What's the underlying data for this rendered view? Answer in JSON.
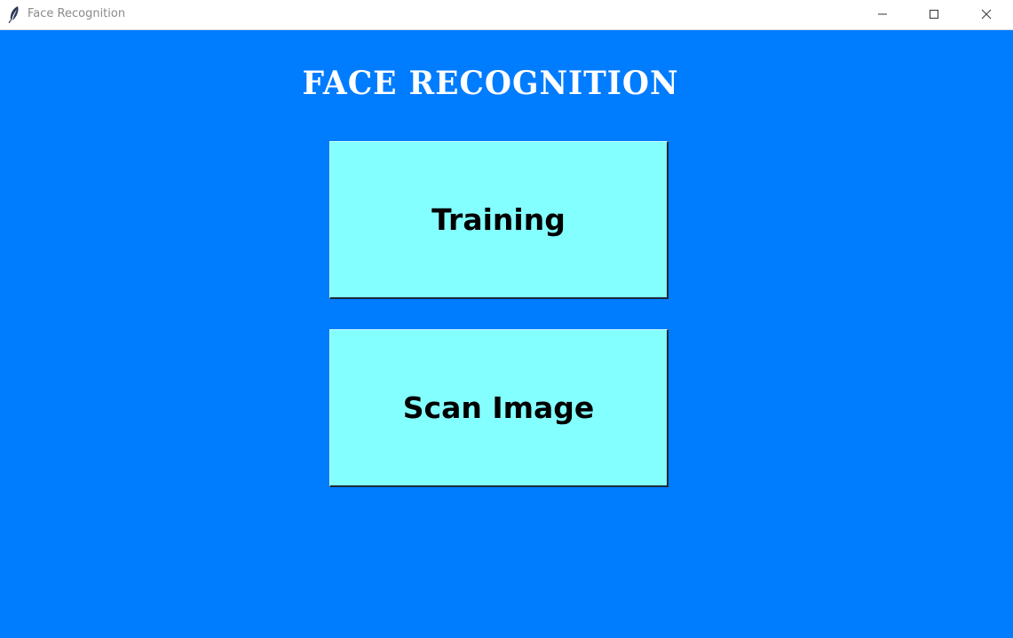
{
  "window": {
    "title": "Face Recognition",
    "app_icon": "feather-icon",
    "controls": [
      "minimize-icon",
      "maximize-icon",
      "close-icon"
    ]
  },
  "main": {
    "heading": "Face Recognition",
    "buttons": {
      "training_label": "Training",
      "scan_label": "Scan Image"
    }
  },
  "colors": {
    "background": "#007cff",
    "button_fill": "#84ffff",
    "heading_text": "#ffffff",
    "button_text": "#000000"
  }
}
